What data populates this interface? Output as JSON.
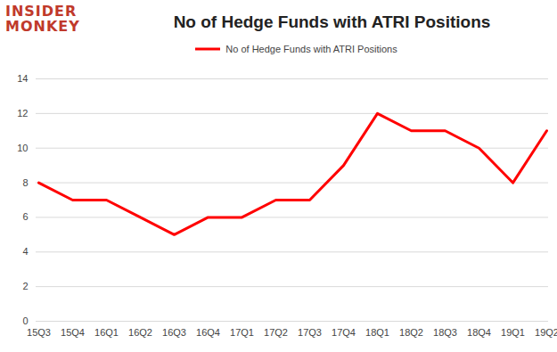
{
  "chart_data": {
    "type": "line",
    "title": "No of Hedge Funds with ATRI Positions",
    "annotation": "INSIDER MONKEY",
    "categories": [
      "15Q3",
      "15Q4",
      "16Q1",
      "16Q2",
      "16Q3",
      "16Q4",
      "17Q1",
      "17Q2",
      "17Q3",
      "17Q4",
      "18Q1",
      "18Q2",
      "18Q3",
      "18Q4",
      "19Q1",
      "19Q2"
    ],
    "series": [
      {
        "name": "No of Hedge Funds with ATRI Positions",
        "color": "#ff0000",
        "values": [
          8,
          7,
          7,
          6,
          5,
          6,
          6,
          7,
          7,
          9,
          12,
          11,
          11,
          10,
          8,
          11
        ]
      }
    ],
    "ylim": [
      0,
      14
    ],
    "yticks": [
      0,
      2,
      4,
      6,
      8,
      10,
      12,
      14
    ],
    "grid": true,
    "legend": "top"
  }
}
